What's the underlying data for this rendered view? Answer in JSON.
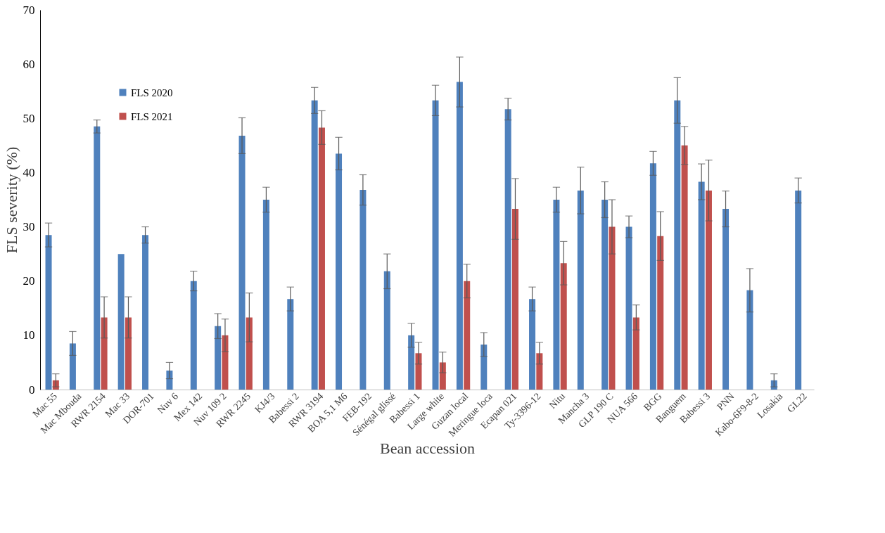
{
  "chart_data": {
    "type": "bar",
    "xlabel": "Bean accession",
    "ylabel": "FLS severity (%)",
    "categories": [
      "Mac 55",
      "Mac Mbouda",
      "RWR 2154",
      "Mac 33",
      "DOR-701",
      "Nuv 6",
      "Mex 142",
      "Nuv 109 2",
      "RWR 2245",
      "KJ4/3",
      "Babessi 2",
      "RWR 3194",
      "BOA 5,1 M6",
      "FEB-192",
      "Sénégal glissé",
      "Babessi 1",
      "Large white",
      "Guzan local",
      "Meringue loca",
      "Ecapan 021",
      "Ty-3396-12",
      "Nitu",
      "Mancha 3",
      "GLP 190 C",
      "NUA 566",
      "BGG",
      "Banguem",
      "Babessi 3",
      "PNN",
      "Kabo-6F9-8-2",
      "Losakia",
      "GL22"
    ],
    "series": [
      {
        "name": "FLS 2020",
        "color": "#4f81bd",
        "values": [
          28.5,
          8.5,
          48.5,
          25,
          28.5,
          3.5,
          20,
          11.7,
          46.8,
          35,
          16.7,
          53.3,
          43.5,
          36.8,
          21.8,
          10,
          53.3,
          56.7,
          8.3,
          51.7,
          16.7,
          35,
          36.7,
          35,
          30,
          41.7,
          53.3,
          38.3,
          33.3,
          18.3,
          1.7,
          36.7
        ],
        "errors": [
          2.2,
          2.2,
          1.2,
          null,
          1.5,
          1.5,
          1.8,
          2.3,
          3.3,
          2.3,
          2.2,
          2.4,
          3,
          2.8,
          3.2,
          2.2,
          2.8,
          4.6,
          2.2,
          2,
          2.2,
          2.3,
          4.3,
          3.3,
          2,
          2.2,
          4.2,
          3.3,
          3.3,
          4,
          1.2,
          2.3
        ]
      },
      {
        "name": "FLS 2021",
        "color": "#c0504d",
        "values": [
          1.7,
          null,
          13.3,
          13.3,
          null,
          null,
          null,
          10,
          13.3,
          null,
          null,
          48.3,
          null,
          null,
          null,
          6.7,
          5,
          20,
          null,
          33.3,
          6.7,
          23.3,
          null,
          30,
          13.3,
          28.3,
          45,
          36.7,
          null,
          null,
          null,
          null
        ],
        "errors": [
          1.2,
          null,
          3.8,
          3.8,
          null,
          null,
          null,
          3,
          4.5,
          null,
          null,
          3.1,
          null,
          null,
          null,
          2,
          1.9,
          3.1,
          null,
          5.6,
          2,
          4,
          null,
          5,
          2.3,
          4.5,
          3.5,
          5.6,
          null,
          null,
          null,
          null
        ]
      }
    ],
    "ylim": [
      0,
      70
    ],
    "yticks": [
      0,
      10,
      20,
      30,
      40,
      50,
      60,
      70
    ],
    "grid": false,
    "legend": "top left"
  }
}
